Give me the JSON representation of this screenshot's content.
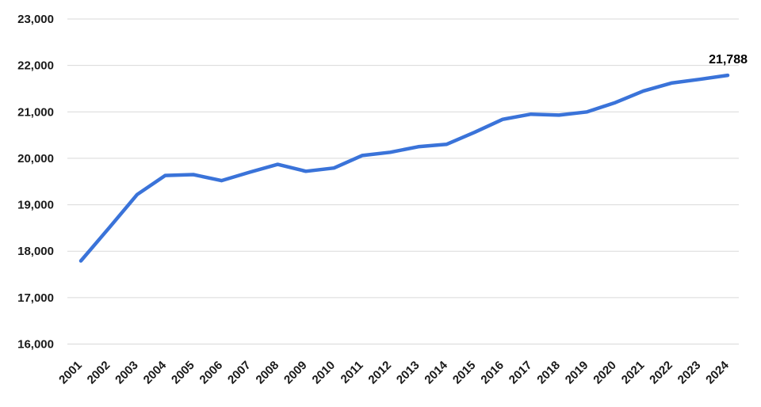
{
  "chart_data": {
    "type": "line",
    "title": "",
    "xlabel": "",
    "ylabel": "",
    "x": [
      "2001",
      "2002",
      "2003",
      "2004",
      "2005",
      "2006",
      "2007",
      "2008",
      "2009",
      "2010",
      "2011",
      "2012",
      "2013",
      "2014",
      "2015",
      "2016",
      "2017",
      "2018",
      "2019",
      "2020",
      "2021",
      "2022",
      "2023",
      "2024"
    ],
    "series": [
      {
        "name": "value",
        "values": [
          17790,
          18500,
          19220,
          19630,
          19650,
          19520,
          19700,
          19870,
          19720,
          19790,
          20060,
          20130,
          20250,
          20300,
          20560,
          20840,
          20950,
          20930,
          21000,
          21200,
          21450,
          21620,
          21700,
          21788
        ]
      }
    ],
    "ylim": [
      16000,
      23000
    ],
    "ytick_step": 1000,
    "ytick_labels": [
      "16,000",
      "17,000",
      "18,000",
      "19,000",
      "20,000",
      "21,000",
      "22,000",
      "23,000"
    ],
    "grid": true,
    "legend": "none",
    "last_point_label": "21,788",
    "colors": {
      "line": "#3A73D9",
      "grid": "#D9D9D9",
      "axis": "#D9D9D9",
      "text": "#1A1A1A",
      "background": "#FFFFFF"
    }
  }
}
